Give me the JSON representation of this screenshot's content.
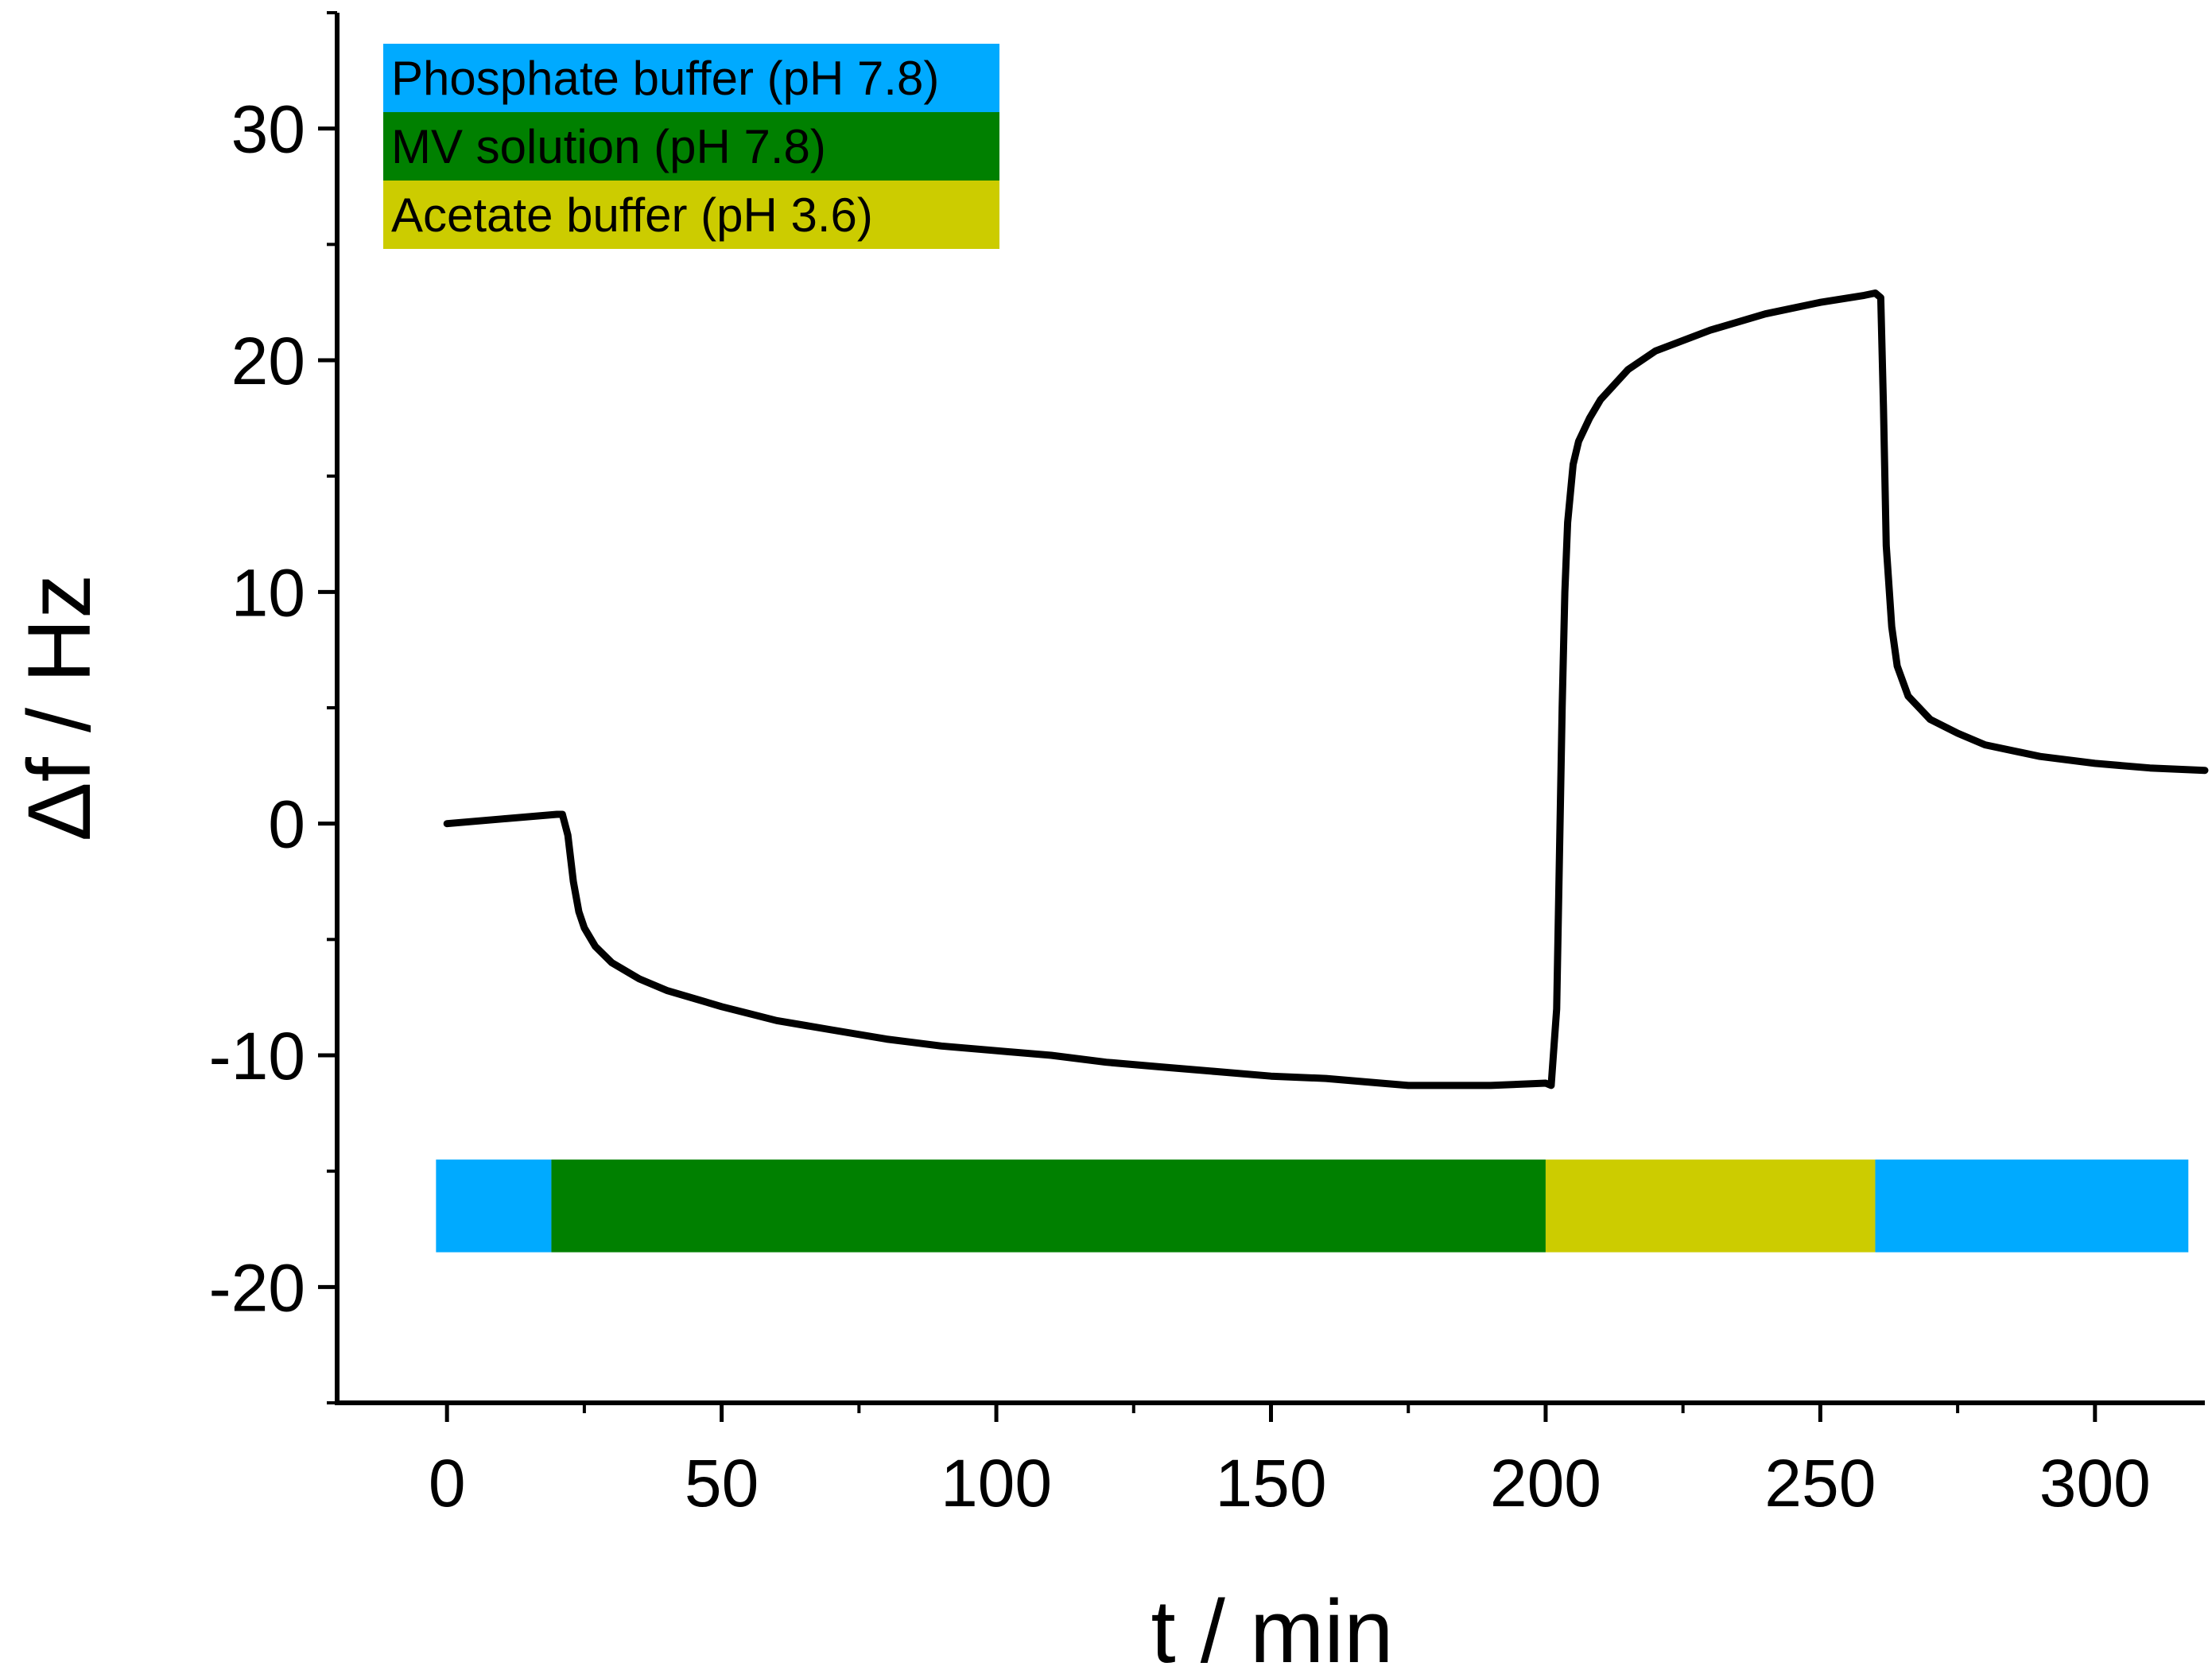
{
  "chart_data": {
    "type": "line",
    "title": "",
    "xlabel": "t / min",
    "ylabel": "Δf / Hz",
    "xlim": [
      -20,
      320
    ],
    "ylim": [
      -25,
      35
    ],
    "x_ticks": [
      0,
      50,
      100,
      150,
      200,
      250,
      300
    ],
    "x_tick_labels": [
      "0",
      "50",
      "100",
      "150",
      "200",
      "250",
      "300"
    ],
    "y_ticks": [
      -20,
      -10,
      0,
      10,
      20,
      30
    ],
    "y_tick_labels": [
      "-20",
      "-10",
      "0",
      "10",
      "20",
      "30"
    ],
    "grid": false,
    "legend_position": "top-left",
    "legend": [
      {
        "label": "Phosphate buffer (pH 7.8)",
        "color": "#00aaff"
      },
      {
        "label": "MV solution (pH 7.8)",
        "color": "#008000"
      },
      {
        "label": "Acetate buffer (pH 3.6)",
        "color": "#cccc00"
      }
    ],
    "phase_bar": {
      "y_range": [
        -18.5,
        -14.5
      ],
      "segments": [
        {
          "start": -2,
          "end": 19,
          "solution": "Phosphate buffer (pH 7.8)",
          "color": "#00aaff"
        },
        {
          "start": 19,
          "end": 200,
          "solution": "MV solution (pH 7.8)",
          "color": "#008000"
        },
        {
          "start": 200,
          "end": 260,
          "solution": "Acetate buffer (pH 3.6)",
          "color": "#cccc00"
        },
        {
          "start": 260,
          "end": 317,
          "solution": "Phosphate buffer (pH 7.8)",
          "color": "#00aaff"
        }
      ]
    },
    "series": [
      {
        "name": "Δf",
        "color": "#000000",
        "x": [
          0,
          10,
          20,
          21,
          22,
          23,
          24,
          25,
          27,
          30,
          35,
          40,
          50,
          60,
          70,
          80,
          90,
          100,
          110,
          120,
          130,
          140,
          150,
          160,
          170,
          175,
          180,
          190,
          200,
          201,
          202,
          203,
          203.5,
          204,
          205,
          206,
          208,
          210,
          215,
          220,
          230,
          240,
          250,
          258,
          260,
          261,
          261.5,
          262,
          263,
          264,
          266,
          270,
          275,
          280,
          290,
          300,
          310,
          320
        ],
        "y": [
          0,
          0.2,
          0.4,
          0.4,
          -0.5,
          -2.5,
          -3.8,
          -4.5,
          -5.3,
          -6.0,
          -6.7,
          -7.2,
          -7.9,
          -8.5,
          -8.9,
          -9.3,
          -9.6,
          -9.8,
          -10.0,
          -10.3,
          -10.5,
          -10.7,
          -10.9,
          -11.0,
          -11.2,
          -11.3,
          -11.3,
          -11.3,
          -11.2,
          -11.3,
          -8.0,
          5.0,
          10.0,
          13.0,
          15.5,
          16.5,
          17.5,
          18.3,
          19.6,
          20.4,
          21.3,
          22.0,
          22.5,
          22.8,
          22.9,
          22.7,
          18.0,
          12.0,
          8.5,
          6.8,
          5.5,
          4.5,
          3.9,
          3.4,
          2.9,
          2.6,
          2.4,
          2.3
        ]
      }
    ]
  }
}
